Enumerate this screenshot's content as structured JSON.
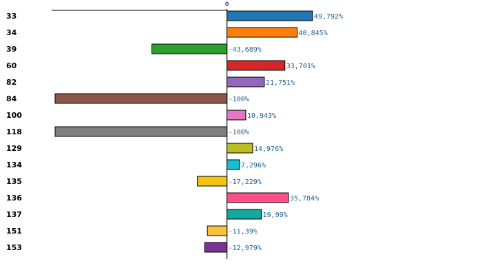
{
  "colors": {
    "value_label": "#1f5f8f",
    "highlight_label": "#e00000",
    "axis": "#000000",
    "bar_stroke": "#000000"
  },
  "chart_data": {
    "type": "bar",
    "orientation": "horizontal",
    "title": "",
    "xlabel": "",
    "ylabel": "",
    "xlim": [
      -100,
      101.5
    ],
    "zero_tick_label": "0",
    "highlight_category": "100",
    "categories": [
      "33",
      "34",
      "39",
      "60",
      "82",
      "84",
      "100",
      "118",
      "129",
      "134",
      "135",
      "136",
      "137",
      "151",
      "153"
    ],
    "values": [
      49.792,
      40.845,
      -43.689,
      33.701,
      21.751,
      -100,
      10.943,
      -100,
      14.976,
      7.296,
      -17.229,
      35.784,
      19.99,
      -11.39,
      -12.979
    ],
    "value_labels": [
      "49,792%",
      "40,845%",
      "-43,689%",
      "33,701%",
      "21,751%",
      "-100%",
      "10,943%",
      "-100%",
      "14,976%",
      "7,296%",
      "-17,229%",
      "35,784%",
      "19,99%",
      "-11,39%",
      "-12,979%"
    ],
    "bar_colors": [
      "#1f77b4",
      "#ff7f0e",
      "#2ca02c",
      "#d62728",
      "#9467bd",
      "#8c564b",
      "#e377c2",
      "#7f7f7f",
      "#bcbd22",
      "#17becf",
      "#f2c40f",
      "#ff4f8b",
      "#12a89d",
      "#fbc040",
      "#7b3294"
    ]
  }
}
